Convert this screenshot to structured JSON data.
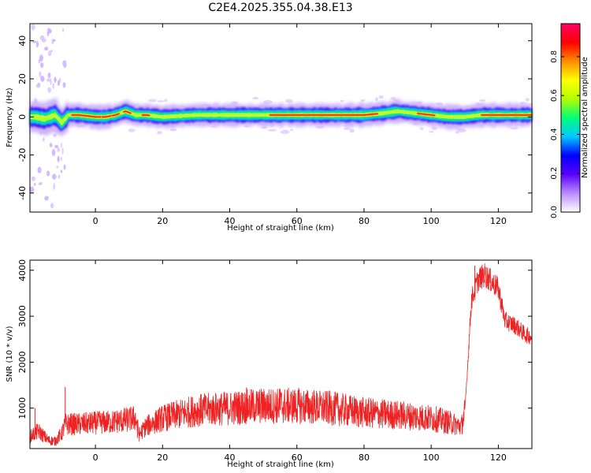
{
  "figure": {
    "title": "C2E4.2025.355.04.38.E13"
  },
  "colorbar": {
    "label": "Normalized spectral amplitude",
    "ticks": [
      "0.0",
      "0.2",
      "0.4",
      "0.6",
      "0.8"
    ],
    "range": [
      0,
      0.97
    ],
    "colors": [
      "#ffffff",
      "#b98cff",
      "#5a00ff",
      "#0000ff",
      "#00c8ff",
      "#00ff78",
      "#b4ff00",
      "#ffff00",
      "#ff8c00",
      "#ff0000",
      "#ff0064"
    ]
  },
  "chart_data": [
    {
      "type": "heatmap",
      "title": "",
      "xlabel": "Height of straight line (km)",
      "ylabel": "Frequency (Hz)",
      "xlim": [
        -19.5,
        130
      ],
      "ylim": [
        -50,
        49
      ],
      "xticks": [
        0,
        20,
        40,
        60,
        80,
        100,
        120
      ],
      "yticks": [
        -40,
        -20,
        0,
        20,
        40
      ],
      "description_of_band": "narrow high-amplitude band centred near 0 to 2 Hz across all heights; scattered low-amplitude noise between -19 and -9 km",
      "band_center_hz": [
        [
          -18,
          0
        ],
        [
          -15,
          -1
        ],
        [
          -12,
          1
        ],
        [
          -10,
          -3
        ],
        [
          -8,
          1
        ],
        [
          -5,
          1
        ],
        [
          0,
          0
        ],
        [
          3,
          0
        ],
        [
          6,
          1
        ],
        [
          9,
          3
        ],
        [
          12,
          1
        ],
        [
          15,
          1
        ],
        [
          20,
          0
        ],
        [
          30,
          1
        ],
        [
          40,
          1
        ],
        [
          50,
          1
        ],
        [
          60,
          1
        ],
        [
          70,
          1
        ],
        [
          80,
          1
        ],
        [
          86,
          2
        ],
        [
          90,
          3
        ],
        [
          95,
          2
        ],
        [
          100,
          1
        ],
        [
          105,
          0
        ],
        [
          110,
          0
        ],
        [
          115,
          1
        ],
        [
          120,
          1
        ],
        [
          125,
          1
        ],
        [
          130,
          1
        ]
      ]
    },
    {
      "type": "line",
      "title": "",
      "xlabel": "Height of straight line (km)",
      "ylabel": "SNR (10 * v/v)",
      "xlim": [
        -19.5,
        130
      ],
      "ylim": [
        120,
        4220
      ],
      "xticks": [
        0,
        20,
        40,
        60,
        80,
        100,
        120
      ],
      "yticks": [
        1000,
        2000,
        3000,
        4000
      ],
      "color": "#ee2222",
      "trend_x": [
        -19.5,
        -17,
        -14,
        -12,
        -10,
        -9,
        -5,
        0,
        5,
        10,
        12,
        13,
        15,
        20,
        30,
        40,
        50,
        60,
        70,
        80,
        90,
        100,
        105,
        109,
        110,
        111,
        112,
        114,
        116,
        118,
        120,
        122,
        125,
        128,
        130
      ],
      "trend_y": [
        380,
        500,
        300,
        280,
        450,
        650,
        650,
        680,
        700,
        750,
        780,
        420,
        600,
        780,
        950,
        1000,
        1050,
        1050,
        1000,
        900,
        850,
        780,
        700,
        600,
        900,
        2100,
        3350,
        3800,
        3900,
        3750,
        3600,
        2900,
        2800,
        2600,
        2550
      ],
      "spikes": [
        [
          -9,
          1460
        ],
        [
          -18,
          1000
        ],
        [
          12.5,
          350
        ],
        [
          45,
          1450
        ],
        [
          55,
          1420
        ],
        [
          113,
          4100
        ]
      ]
    }
  ]
}
